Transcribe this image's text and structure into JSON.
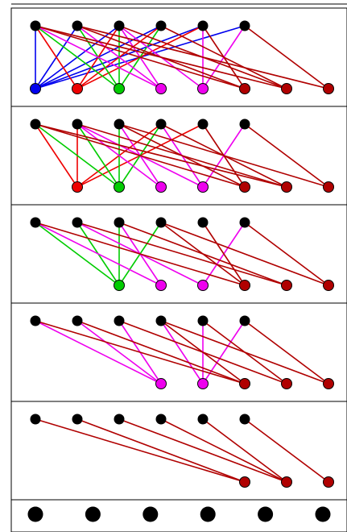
{
  "colors": {
    "black": "#000000",
    "blue": "#0000ee",
    "red": "#ee0000",
    "green": "#00cc00",
    "magenta": "#ee00ee",
    "darkred": "#b00000",
    "frame": "#000000",
    "background": "#ffffff"
  },
  "top_nodes": 6,
  "bottom_columns": 8,
  "panels": [
    {
      "name": "panel-1",
      "bottom": [
        {
          "col": 0,
          "color": "blue"
        },
        {
          "col": 1,
          "color": "red"
        },
        {
          "col": 2,
          "color": "green"
        },
        {
          "col": 3,
          "color": "magenta"
        },
        {
          "col": 4,
          "color": "magenta"
        },
        {
          "col": 5,
          "color": "darkred"
        },
        {
          "col": 6,
          "color": "darkred"
        },
        {
          "col": 7,
          "color": "darkred"
        }
      ],
      "edges": [
        [
          0,
          0,
          "blue"
        ],
        [
          1,
          0,
          "blue"
        ],
        [
          2,
          0,
          "blue"
        ],
        [
          3,
          0,
          "blue"
        ],
        [
          4,
          0,
          "blue"
        ],
        [
          5,
          0,
          "blue"
        ],
        [
          0,
          1,
          "red"
        ],
        [
          2,
          1,
          "red"
        ],
        [
          3,
          1,
          "red"
        ],
        [
          4,
          1,
          "red"
        ],
        [
          0,
          2,
          "green"
        ],
        [
          1,
          2,
          "green"
        ],
        [
          2,
          2,
          "green"
        ],
        [
          3,
          2,
          "green"
        ],
        [
          0,
          3,
          "magenta"
        ],
        [
          1,
          3,
          "magenta"
        ],
        [
          2,
          3,
          "magenta"
        ],
        [
          2,
          4,
          "magenta"
        ],
        [
          4,
          4,
          "magenta"
        ],
        [
          5,
          4,
          "magenta"
        ],
        [
          0,
          5,
          "darkred"
        ],
        [
          1,
          5,
          "darkred"
        ],
        [
          4,
          5,
          "darkred"
        ],
        [
          0,
          6,
          "darkred"
        ],
        [
          2,
          6,
          "darkred"
        ],
        [
          3,
          6,
          "darkred"
        ],
        [
          1,
          7,
          "darkred"
        ],
        [
          5,
          7,
          "darkred"
        ]
      ]
    },
    {
      "name": "panel-2",
      "bottom": [
        {
          "col": 1,
          "color": "red"
        },
        {
          "col": 2,
          "color": "green"
        },
        {
          "col": 3,
          "color": "magenta"
        },
        {
          "col": 4,
          "color": "magenta"
        },
        {
          "col": 5,
          "color": "darkred"
        },
        {
          "col": 6,
          "color": "darkred"
        },
        {
          "col": 7,
          "color": "darkred"
        }
      ],
      "edges": [
        [
          0,
          1,
          "red"
        ],
        [
          1,
          1,
          "red"
        ],
        [
          3,
          1,
          "red"
        ],
        [
          4,
          1,
          "red"
        ],
        [
          0,
          2,
          "green"
        ],
        [
          1,
          2,
          "green"
        ],
        [
          2,
          2,
          "green"
        ],
        [
          3,
          2,
          "green"
        ],
        [
          1,
          3,
          "magenta"
        ],
        [
          2,
          3,
          "magenta"
        ],
        [
          1,
          4,
          "magenta"
        ],
        [
          3,
          4,
          "magenta"
        ],
        [
          5,
          4,
          "magenta"
        ],
        [
          0,
          5,
          "darkred"
        ],
        [
          2,
          5,
          "darkred"
        ],
        [
          4,
          5,
          "darkred"
        ],
        [
          0,
          6,
          "darkred"
        ],
        [
          1,
          6,
          "darkred"
        ],
        [
          3,
          6,
          "darkred"
        ],
        [
          2,
          7,
          "darkred"
        ],
        [
          5,
          7,
          "darkred"
        ]
      ]
    },
    {
      "name": "panel-3",
      "bottom": [
        {
          "col": 2,
          "color": "green"
        },
        {
          "col": 3,
          "color": "magenta"
        },
        {
          "col": 4,
          "color": "magenta"
        },
        {
          "col": 5,
          "color": "darkred"
        },
        {
          "col": 6,
          "color": "darkred"
        },
        {
          "col": 7,
          "color": "darkred"
        }
      ],
      "edges": [
        [
          0,
          2,
          "green"
        ],
        [
          1,
          2,
          "green"
        ],
        [
          2,
          2,
          "green"
        ],
        [
          3,
          2,
          "green"
        ],
        [
          0,
          3,
          "magenta"
        ],
        [
          2,
          3,
          "magenta"
        ],
        [
          1,
          4,
          "magenta"
        ],
        [
          5,
          4,
          "magenta"
        ],
        [
          0,
          5,
          "darkred"
        ],
        [
          3,
          5,
          "darkred"
        ],
        [
          4,
          5,
          "darkred"
        ],
        [
          1,
          6,
          "darkred"
        ],
        [
          2,
          6,
          "darkred"
        ],
        [
          3,
          7,
          "darkred"
        ],
        [
          5,
          7,
          "darkred"
        ]
      ]
    },
    {
      "name": "panel-4",
      "bottom": [
        {
          "col": 3,
          "color": "magenta"
        },
        {
          "col": 4,
          "color": "magenta"
        },
        {
          "col": 5,
          "color": "darkred"
        },
        {
          "col": 6,
          "color": "darkred"
        },
        {
          "col": 7,
          "color": "darkred"
        }
      ],
      "edges": [
        [
          0,
          3,
          "magenta"
        ],
        [
          1,
          3,
          "magenta"
        ],
        [
          2,
          3,
          "magenta"
        ],
        [
          3,
          4,
          "magenta"
        ],
        [
          4,
          4,
          "magenta"
        ],
        [
          5,
          4,
          "magenta"
        ],
        [
          0,
          5,
          "darkred"
        ],
        [
          1,
          5,
          "darkred"
        ],
        [
          3,
          5,
          "darkred"
        ],
        [
          2,
          6,
          "darkred"
        ],
        [
          4,
          6,
          "darkred"
        ],
        [
          3,
          7,
          "darkred"
        ],
        [
          5,
          7,
          "darkred"
        ]
      ]
    },
    {
      "name": "panel-5",
      "bottom": [
        {
          "col": 5,
          "color": "darkred"
        },
        {
          "col": 6,
          "color": "darkred"
        },
        {
          "col": 7,
          "color": "darkred"
        }
      ],
      "edges": [
        [
          0,
          5,
          "darkred"
        ],
        [
          1,
          5,
          "darkred"
        ],
        [
          2,
          6,
          "darkred"
        ],
        [
          3,
          6,
          "darkred"
        ],
        [
          4,
          6,
          "darkred"
        ],
        [
          5,
          7,
          "darkred"
        ]
      ]
    }
  ],
  "final_row_nodes": 6
}
